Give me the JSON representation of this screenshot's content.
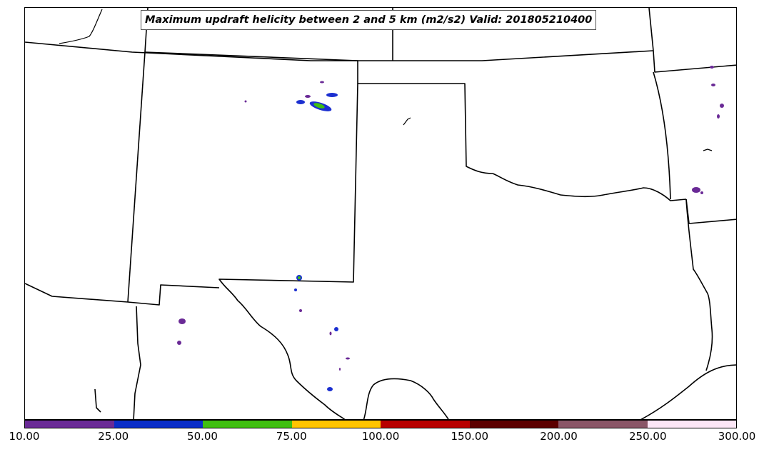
{
  "title": "Maximum updraft helicity between 2 and 5 km (m2/s2) Valid: 201805210400",
  "colorbar": {
    "ticks": [
      "10.00",
      "25.00",
      "50.00",
      "75.00",
      "100.00",
      "150.00",
      "200.00",
      "250.00",
      "300.00"
    ],
    "colors": [
      "#6a2a96",
      "#0a2ec8",
      "#3fbf10",
      "#ffc400",
      "#b80000",
      "#5c0000",
      "#8a5667",
      "#fce6f6"
    ]
  },
  "map": {
    "state_line_color": "#000000",
    "cell_colors": {
      "low": "#6a2a96",
      "mid": "#1b2fd0",
      "high": "#3fbf10"
    }
  }
}
